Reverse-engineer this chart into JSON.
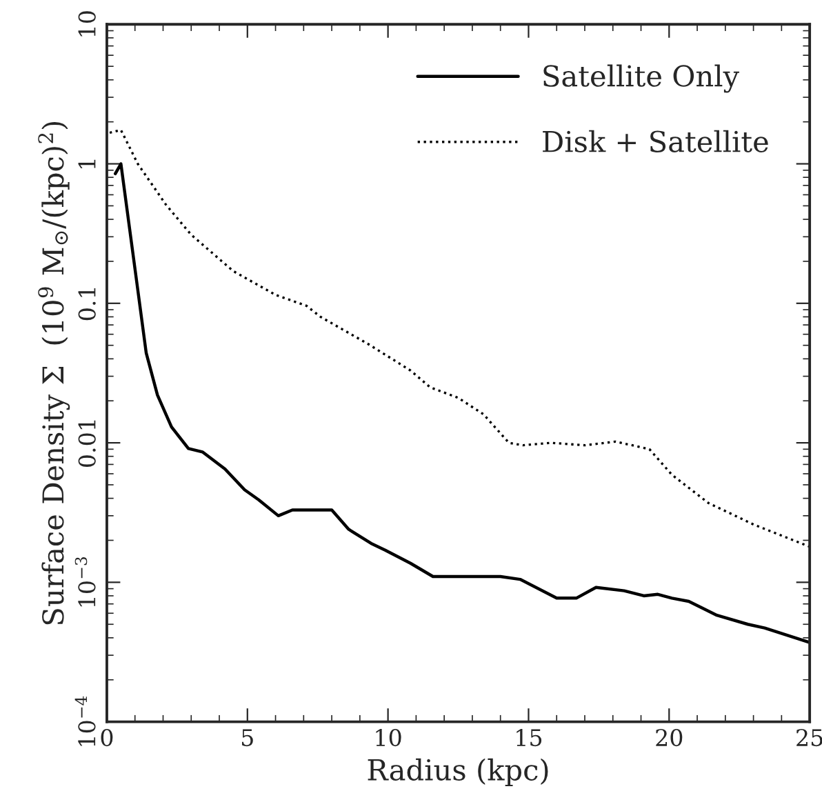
{
  "chart_data": {
    "type": "line",
    "xlabel": "Radius (kpc)",
    "ylabel": "Surface Density Σ  (10$^{9}$ M$_{⊙}$/(kpc)$^{2}$)",
    "log": "y",
    "xlim": [
      0,
      25
    ],
    "xticks": [
      0,
      5,
      10,
      15,
      20,
      25
    ],
    "ylim": [
      0.0001,
      10
    ],
    "yticks": [
      {
        "value": 0.0001,
        "label": "10$^{−4}$"
      },
      {
        "value": 0.001,
        "label": "10$^{−3}$"
      },
      0.01,
      0.1,
      1,
      10
    ],
    "legend": "top right",
    "grid": false,
    "series": [
      {
        "name": "Satellite Only",
        "color": "#000000",
        "line_style": "solid",
        "x": [
          0.3,
          0.5,
          1.1,
          1.4,
          1.8,
          2.3,
          2.9,
          3.4,
          4.2,
          4.9,
          5.4,
          6.1,
          6.6,
          8.0,
          8.6,
          9.4,
          9.9,
          10.8,
          11.6,
          14.0,
          14.7,
          16.0,
          16.7,
          17.4,
          18.4,
          19.1,
          19.6,
          20.1,
          20.7,
          21.7,
          22.8,
          23.4,
          25.0
        ],
        "values": [
          0.85,
          1.0,
          0.125,
          0.044,
          0.022,
          0.013,
          0.0091,
          0.0086,
          0.0065,
          0.0046,
          0.0039,
          0.003,
          0.0033,
          0.0033,
          0.0024,
          0.0019,
          0.0017,
          0.00137,
          0.0011,
          0.0011,
          0.00105,
          0.00077,
          0.00077,
          0.00092,
          0.00087,
          0.0008,
          0.00082,
          0.00077,
          0.00073,
          0.00058,
          0.0005,
          0.00047,
          0.00037
        ]
      },
      {
        "name": "Disk + Satellite",
        "color": "#000000",
        "line_style": "dotted",
        "x": [
          0.1,
          0.5,
          1.1,
          2.1,
          3.0,
          4.5,
          6.0,
          7.1,
          7.6,
          9.3,
          10.8,
          11.5,
          12.5,
          13.4,
          14.3,
          14.8,
          15.8,
          17.0,
          18.1,
          19.3,
          20.1,
          21.4,
          23.0,
          25.0
        ],
        "values": [
          1.67,
          1.75,
          1.0,
          0.51,
          0.31,
          0.17,
          0.115,
          0.096,
          0.08,
          0.051,
          0.033,
          0.025,
          0.021,
          0.016,
          0.01,
          0.0096,
          0.01,
          0.0096,
          0.0102,
          0.009,
          0.0059,
          0.0037,
          0.0026,
          0.0018
        ]
      }
    ]
  }
}
